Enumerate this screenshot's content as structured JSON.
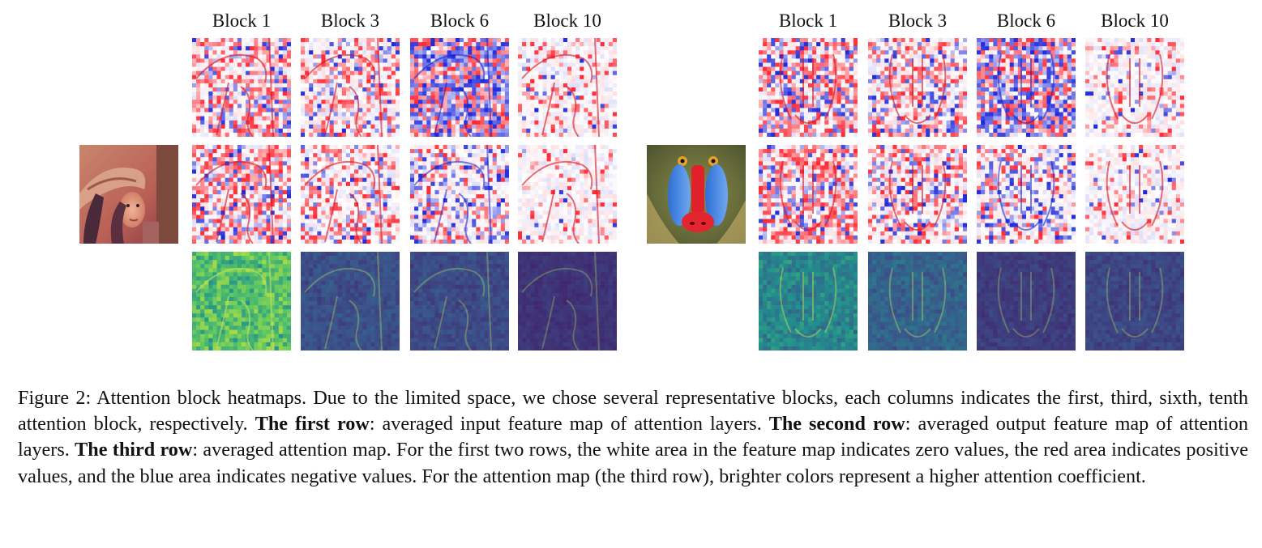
{
  "figure": {
    "left_panel": {
      "column_labels": [
        "Block 1",
        "Block 3",
        "Block 6",
        "Block 10"
      ]
    },
    "right_panel": {
      "column_labels": [
        "Block 1",
        "Block 3",
        "Block 6",
        "Block 10"
      ]
    },
    "caption": {
      "prefix": "Figure 2: Attention block heatmaps. Due to the limited space, we chose several representative blocks, each columns indicates the first, third, sixth, tenth attention block, respectively. ",
      "row1_label": "The first row",
      "row1_text": ": averaged input feature map of attention layers. ",
      "row2_label": "The second row",
      "row2_text": ": averaged output feature map of attention layers. ",
      "row3_label": "The third row",
      "row3_text": ": averaged attention map. For the first two rows, the white area in the feature map indicates zero values, the red area indicates positive values, and the blue area indicates negative values. For the attention map (the third row), brighter colors represent a higher attention coefficient."
    },
    "colors": {
      "positive": "#e0303a",
      "negative": "#2a35d8",
      "zero": "#ffffff",
      "attention_low": "#3b2a6e",
      "attention_high": "#b8de3a"
    }
  }
}
